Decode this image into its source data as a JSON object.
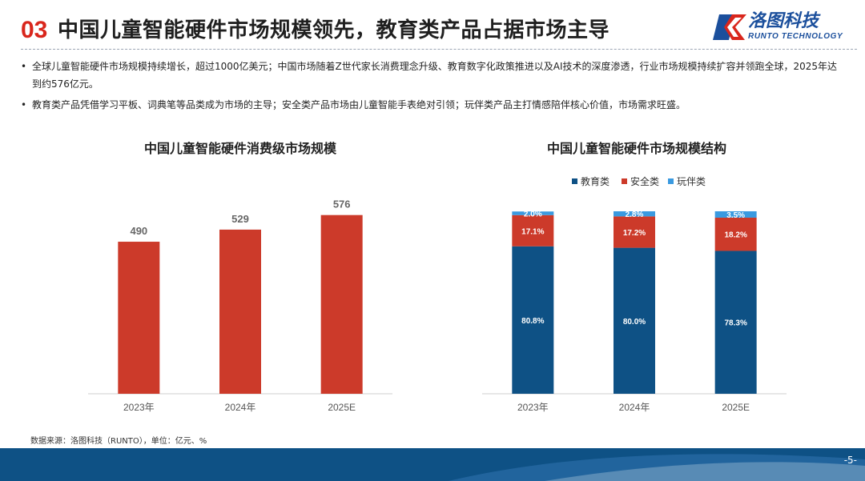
{
  "header": {
    "section_number": "03",
    "title": "中国儿童智能硬件市场规模领先，教育类产品占据市场主导"
  },
  "logo": {
    "name_cn": "洛图科技",
    "name_en": "RUNTO TECHNOLOGY",
    "icon": "runto-logo-icon",
    "colors": {
      "blue": "#1b4f9c",
      "red": "#d9261c"
    }
  },
  "bullets": [
    "全球儿童智能硬件市场规模持续增长，超过1000亿美元；中国市场随着Z世代家长消费理念升级、教育数字化政策推进以及AI技术的深度渗透，行业市场规模持续扩容并领跑全球，2025年达到约576亿元。",
    "教育类产品凭借学习平板、词典笔等品类成为市场的主导；安全类产品市场由儿童智能手表绝对引领；玩伴类产品主打情感陪伴核心价值，市场需求旺盛。"
  ],
  "chart_data": [
    {
      "type": "bar",
      "title": "中国儿童智能硬件消费级市场规模",
      "categories": [
        "2023年",
        "2024年",
        "2025E"
      ],
      "values": [
        490,
        529,
        576
      ],
      "ylim": [
        0,
        650
      ],
      "color": "#cc3a2a",
      "grid": false,
      "legend": "none"
    },
    {
      "type": "bar",
      "stacked": true,
      "percent": true,
      "title": "中国儿童智能硬件市场规模结构",
      "categories": [
        "2023年",
        "2024年",
        "2025E"
      ],
      "series": [
        {
          "name": "教育类",
          "values": [
            80.8,
            80.0,
            78.3
          ],
          "labels": [
            "80.8%",
            "80.0%",
            "78.3%"
          ],
          "color": "#0e5185"
        },
        {
          "name": "安全类",
          "values": [
            17.1,
            17.2,
            18.2
          ],
          "labels": [
            "17.1%",
            "17.2%",
            "18.2%"
          ],
          "color": "#cc3a2a"
        },
        {
          "name": "玩伴类",
          "values": [
            2.0,
            2.8,
            3.5
          ],
          "labels": [
            "2.0%",
            "2.8%",
            "3.5%"
          ],
          "color": "#3a9ae0"
        }
      ],
      "ylim": [
        0,
        100
      ],
      "grid": false,
      "legend": "top"
    }
  ],
  "footer": {
    "source": "数据来源：洛图科技（RUNTO），单位：亿元、%",
    "page": "-5-",
    "bar_color": "#0e5185"
  }
}
